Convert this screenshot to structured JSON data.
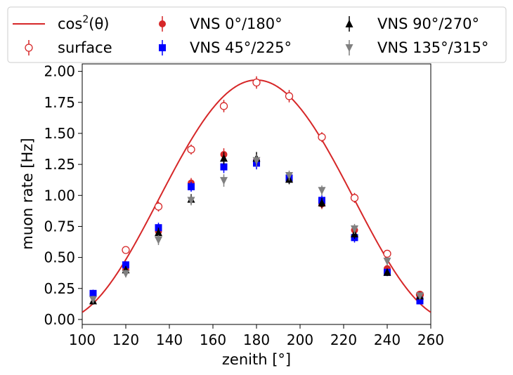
{
  "chart_data": {
    "type": "scatter",
    "xlabel": "zenith [°]",
    "ylabel": "muon rate [Hz]",
    "xlim": [
      100,
      260
    ],
    "ylim": [
      -0.04,
      2.06
    ],
    "x_ticks": [
      "100",
      "120",
      "140",
      "160",
      "180",
      "200",
      "220",
      "240",
      "260"
    ],
    "y_ticks": [
      "0.00",
      "0.25",
      "0.50",
      "0.75",
      "1.00",
      "1.25",
      "1.50",
      "1.75",
      "2.00"
    ],
    "x_tick_values": [
      100,
      120,
      140,
      160,
      180,
      200,
      220,
      240,
      260
    ],
    "y_tick_values": [
      0,
      0.25,
      0.5,
      0.75,
      1.0,
      1.25,
      1.5,
      1.75,
      2.0
    ],
    "curve": {
      "name": "cos",
      "sup": "2",
      "suffix": "(θ)",
      "amplitude": 1.93,
      "center": 180,
      "color": "#d62728"
    },
    "series": [
      {
        "name": "surface",
        "marker": "open-circle",
        "color": "#d62728",
        "x": [
          120,
          135,
          150,
          165,
          180,
          195,
          210,
          225,
          240,
          255
        ],
        "y": [
          0.56,
          0.91,
          1.37,
          1.72,
          1.91,
          1.8,
          1.47,
          0.98,
          0.53,
          0.2
        ],
        "err": [
          0.03,
          0.04,
          0.04,
          0.05,
          0.05,
          0.05,
          0.04,
          0.04,
          0.03,
          0.02
        ]
      },
      {
        "name": "VNS 0°/180°",
        "marker": "circle",
        "color": "#d62728",
        "x": [
          105,
          120,
          135,
          150,
          165,
          180,
          195,
          210,
          225,
          240,
          255
        ],
        "y": [
          0.21,
          0.4,
          0.71,
          1.1,
          1.33,
          1.28,
          1.15,
          0.93,
          0.72,
          0.41,
          0.2
        ],
        "err": [
          0.03,
          0.03,
          0.04,
          0.04,
          0.05,
          0.05,
          0.04,
          0.04,
          0.04,
          0.03,
          0.02
        ]
      },
      {
        "name": "VNS 45°/225°",
        "marker": "square",
        "color": "#0000ff",
        "x": [
          105,
          120,
          135,
          150,
          165,
          180,
          195,
          210,
          225,
          240,
          255
        ],
        "y": [
          0.21,
          0.44,
          0.74,
          1.07,
          1.23,
          1.26,
          1.14,
          0.96,
          0.66,
          0.38,
          0.15
        ],
        "err": [
          0.03,
          0.03,
          0.04,
          0.04,
          0.05,
          0.05,
          0.04,
          0.04,
          0.04,
          0.03,
          0.02
        ]
      },
      {
        "name": "VNS 90°/270°",
        "marker": "triangle-up",
        "color": "#000000",
        "x": [
          105,
          120,
          135,
          150,
          165,
          180,
          195,
          210,
          225,
          240,
          255
        ],
        "y": [
          0.15,
          0.4,
          0.7,
          0.97,
          1.3,
          1.3,
          1.13,
          0.94,
          0.69,
          0.38,
          0.19
        ],
        "err": [
          0.03,
          0.03,
          0.04,
          0.04,
          0.05,
          0.05,
          0.04,
          0.04,
          0.04,
          0.03,
          0.02
        ]
      },
      {
        "name": "VNS 135°/315°",
        "marker": "triangle-down",
        "color": "#808080",
        "x": [
          105,
          120,
          135,
          150,
          165,
          180,
          195,
          210,
          225,
          240,
          255
        ],
        "y": [
          0.16,
          0.37,
          0.64,
          0.96,
          1.12,
          1.28,
          1.16,
          1.04,
          0.73,
          0.47,
          0.19
        ],
        "err": [
          0.03,
          0.03,
          0.04,
          0.04,
          0.05,
          0.05,
          0.04,
          0.04,
          0.04,
          0.03,
          0.02
        ]
      }
    ]
  }
}
